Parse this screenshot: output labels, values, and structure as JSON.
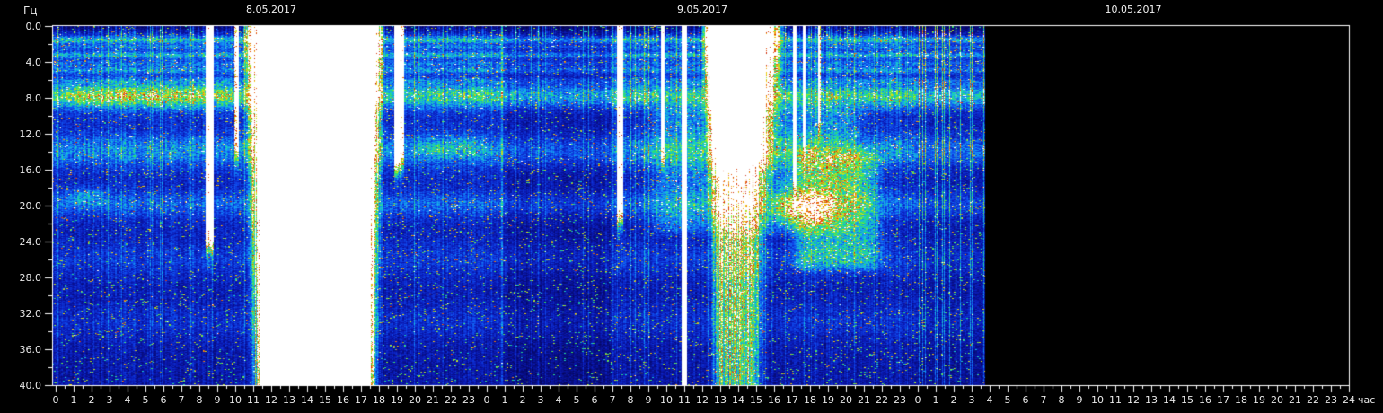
{
  "chart_data": {
    "type": "heatmap",
    "subtype": "spectrogram",
    "ylabel": "Гц",
    "xlabel": "час",
    "y_range_hz": [
      0,
      40
    ],
    "y_tick_labels": [
      "0.0",
      "4.0",
      "8.0",
      "12.0",
      "16.0",
      "20.0",
      "24.0",
      "28.0",
      "32.0",
      "36.0",
      "40.0"
    ],
    "axis": {
      "y_major_step_hz": 4,
      "y_minor_step_hz": 2,
      "x_major_step_h": 1,
      "x_minor_step_h": 0.5
    },
    "hours_per_day": 24,
    "total_hours": 72,
    "data_end_hour": 51.7,
    "days": [
      {
        "date": "8.05.2017",
        "hour_labels": [
          "0",
          "1",
          "2",
          "3",
          "4",
          "5",
          "6",
          "7",
          "8",
          "9",
          "10",
          "11",
          "12",
          "13",
          "14",
          "15",
          "16",
          "17",
          "18",
          "19",
          "20",
          "21",
          "22",
          "23"
        ]
      },
      {
        "date": "9.05.2017",
        "hour_labels": [
          "0",
          "1",
          "2",
          "3",
          "4",
          "5",
          "6",
          "7",
          "8",
          "9",
          "10",
          "11",
          "12",
          "13",
          "14",
          "15",
          "16",
          "17",
          "18",
          "19",
          "20",
          "21",
          "22",
          "23"
        ]
      },
      {
        "date": "10.05.2017",
        "hour_labels": [
          "0",
          "1",
          "2",
          "3",
          "4",
          "5",
          "6",
          "7",
          "8",
          "9",
          "10",
          "11",
          "12",
          "13",
          "14",
          "15",
          "16",
          "17",
          "18",
          "19",
          "20",
          "21",
          "22",
          "23",
          "24"
        ]
      }
    ],
    "resonance_bands_hz": [
      7.8,
      13.9,
      19.9,
      26,
      33
    ],
    "low_freq_lines_hz": [
      1.55,
      2.35,
      3.25,
      4.15,
      4.9,
      6.1
    ],
    "colors": {
      "background": "#000000",
      "axis": "#ffffff",
      "text": "#e9e9e9",
      "saturation": "#ffffff"
    },
    "colormap": [
      [
        0.0,
        "#020219"
      ],
      [
        0.1,
        "#05055a"
      ],
      [
        0.22,
        "#0a19b4"
      ],
      [
        0.34,
        "#0f46eb"
      ],
      [
        0.46,
        "#1496f5"
      ],
      [
        0.56,
        "#19cdc8"
      ],
      [
        0.66,
        "#2de15f"
      ],
      [
        0.75,
        "#96eb2d"
      ],
      [
        0.82,
        "#ebdc19"
      ],
      [
        0.88,
        "#f5960f"
      ],
      [
        0.93,
        "#e1460a"
      ],
      [
        0.97,
        "#c81e05"
      ],
      [
        1.0,
        "#ffffff"
      ]
    ],
    "texture": {
      "base_level": 0.285,
      "base_slope_per_hz": 0.0022,
      "bands": [
        [
          7.8,
          0.9,
          0.33
        ],
        [
          13.9,
          1.2,
          0.185
        ],
        [
          19.9,
          1.0,
          0.125
        ],
        [
          26,
          1.3,
          0.065
        ],
        [
          33,
          1.4,
          0.055
        ],
        [
          1.55,
          0.25,
          0.27
        ],
        [
          2.35,
          0.22,
          0.13
        ],
        [
          3.25,
          0.27,
          0.22
        ],
        [
          4.15,
          0.22,
          0.12
        ],
        [
          4.9,
          0.27,
          0.17
        ],
        [
          6.1,
          0.27,
          0.1
        ]
      ],
      "stripe_bright_prob": 0.055,
      "stripe_mid_prob": 0.2,
      "day3_stripe_prob": 0.2,
      "speckle_prob": 0.045
    },
    "events": [
      {
        "kind": "band",
        "t0": 0,
        "t1": 10.5,
        "freq": 7.8,
        "sigma": 1.0,
        "amp": 0.12
      },
      {
        "kind": "cloud",
        "t0": 0,
        "t1": 3.5,
        "f0": 17.2,
        "f1": 20.8,
        "amp": 0.16
      },
      {
        "kind": "column",
        "t0": 8.35,
        "t1": 8.75,
        "fmax": 22,
        "amp": 1.6
      },
      {
        "kind": "column",
        "t0": 9.95,
        "t1": 10.15,
        "fmax": 12,
        "amp": 1.1
      },
      {
        "kind": "storm",
        "t0": 10.4,
        "t1": 18.35,
        "rise": 1.3,
        "fall": 1.1,
        "amp": 3.2,
        "f_exp_div": 16
      },
      {
        "kind": "column",
        "t0": 18.85,
        "t1": 19.35,
        "fmax": 13,
        "amp": 1.8
      },
      {
        "kind": "cloud",
        "t0": 19.5,
        "t1": 24.5,
        "f0": 11.5,
        "f1": 15.5,
        "amp": 0.1
      },
      {
        "kind": "dim",
        "t0": 24.8,
        "t1": 31.2,
        "factor": 0.78
      },
      {
        "kind": "column",
        "t0": 31.25,
        "t1": 31.55,
        "fmax": 19,
        "amp": 1.5
      },
      {
        "kind": "column",
        "t0": 33.7,
        "t1": 33.85,
        "fmax": 12,
        "amp": 1.2
      },
      {
        "kind": "column",
        "t0": 34.85,
        "t1": 35.1,
        "fmax": 40,
        "amp": 2.2
      },
      {
        "kind": "storm",
        "t0": 35.9,
        "t1": 40.6,
        "rise": 0.9,
        "fall": 1.7,
        "amp": 2.7,
        "f_exp_div": 9,
        "f_lp": 13
      },
      {
        "kind": "cloud",
        "t0": 32.5,
        "t1": 45.5,
        "f0": 8,
        "f1": 24,
        "amp": 0.16
      },
      {
        "kind": "cloud",
        "t0": 40.5,
        "t1": 46.5,
        "f0": 13,
        "f1": 28,
        "amp": 0.27
      },
      {
        "kind": "band",
        "t0": 39.5,
        "t1": 43.8,
        "freq": 20.2,
        "sigma": 1.3,
        "amp": 0.3
      },
      {
        "kind": "band",
        "t0": 36.0,
        "t1": 40.5,
        "freq": 14.0,
        "sigma": 1.6,
        "amp": 0.18
      },
      {
        "kind": "column",
        "t0": 41.05,
        "t1": 41.2,
        "fmax": 15,
        "amp": 1.5
      },
      {
        "kind": "column",
        "t0": 41.6,
        "t1": 41.72,
        "fmax": 11,
        "amp": 1.3
      },
      {
        "kind": "column",
        "t0": 42.45,
        "t1": 42.55,
        "fmax": 9,
        "amp": 1.1
      }
    ]
  }
}
